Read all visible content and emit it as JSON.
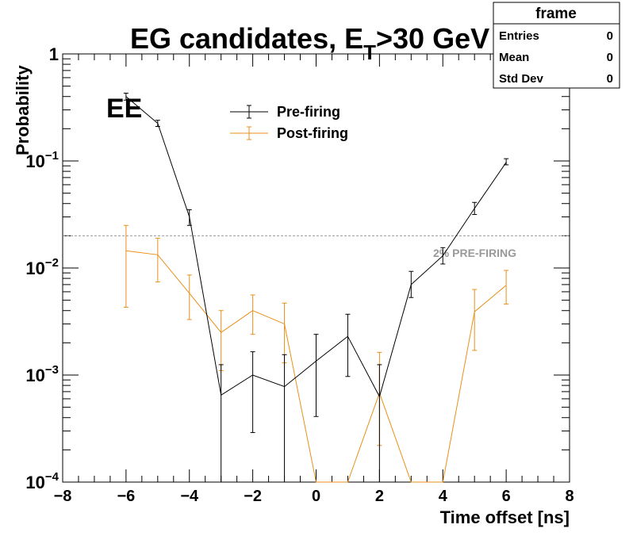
{
  "chart_data": {
    "type": "line",
    "title_main": "EG candidates, E",
    "title_sub": "T",
    "title_rest": ">30 GeV",
    "region_label": "EE",
    "xlabel": "Time offset [ns]",
    "ylabel": "Probability",
    "xlim": [
      -8,
      8
    ],
    "ylim": [
      0.0001,
      1
    ],
    "yscale": "log",
    "x_ticks": [
      "−8",
      "−6",
      "−4",
      "−2",
      "0",
      "2",
      "4",
      "6",
      "8"
    ],
    "y_ticks": [
      {
        "base": "10",
        "exp": "−4"
      },
      {
        "base": "10",
        "exp": "−3"
      },
      {
        "base": "10",
        "exp": "−2"
      },
      {
        "base": "10",
        "exp": "−1"
      },
      {
        "base": "1",
        "exp": ""
      }
    ],
    "threshold": {
      "value": 0.02,
      "label": "2% PRE-FIRING",
      "color": "#999999"
    },
    "series": [
      {
        "name": "Pre-firing",
        "color": "#000000",
        "x": [
          -6,
          -5,
          -4,
          -3,
          -2,
          -1,
          0,
          1,
          2,
          3,
          4,
          5,
          6
        ],
        "values": [
          0.4,
          0.225,
          0.03,
          0.00065,
          0.001,
          0.00078,
          0.00135,
          0.0023,
          0.00063,
          0.007,
          0.013,
          0.036,
          0.097
        ],
        "err_low": [
          0.37,
          0.21,
          0.025,
          0.0001,
          0.00029,
          0.0001,
          0.00041,
          0.00097,
          0.0001,
          0.0053,
          0.0109,
          0.0316,
          0.092
        ],
        "err_high": [
          0.43,
          0.24,
          0.035,
          0.00125,
          0.00165,
          0.00155,
          0.0024,
          0.0037,
          0.00125,
          0.0093,
          0.0155,
          0.041,
          0.105
        ]
      },
      {
        "name": "Post-firing",
        "color": "#e8901a",
        "x": [
          -6,
          -5,
          -4,
          -3,
          -2,
          -1,
          0,
          1,
          2,
          3,
          4,
          5,
          6
        ],
        "values": [
          0.0145,
          0.0133,
          0.0058,
          0.0025,
          0.004,
          0.003,
          0.0001,
          0.0001,
          0.00068,
          0.0001,
          0.0001,
          0.0039,
          0.0069
        ],
        "err_low": [
          0.0043,
          0.0074,
          0.0033,
          0.0011,
          0.0024,
          0.0013,
          null,
          null,
          0.00022,
          null,
          null,
          0.0017,
          0.0046
        ],
        "err_high": [
          0.025,
          0.019,
          0.0086,
          0.004,
          0.0056,
          0.0047,
          null,
          null,
          0.00163,
          null,
          null,
          0.0063,
          0.0095
        ]
      }
    ],
    "stats_box": {
      "title": "frame",
      "rows": [
        {
          "label": "Entries",
          "value": "0"
        },
        {
          "label": "Mean",
          "value": "0"
        },
        {
          "label": "Std Dev",
          "value": "0"
        }
      ]
    }
  }
}
